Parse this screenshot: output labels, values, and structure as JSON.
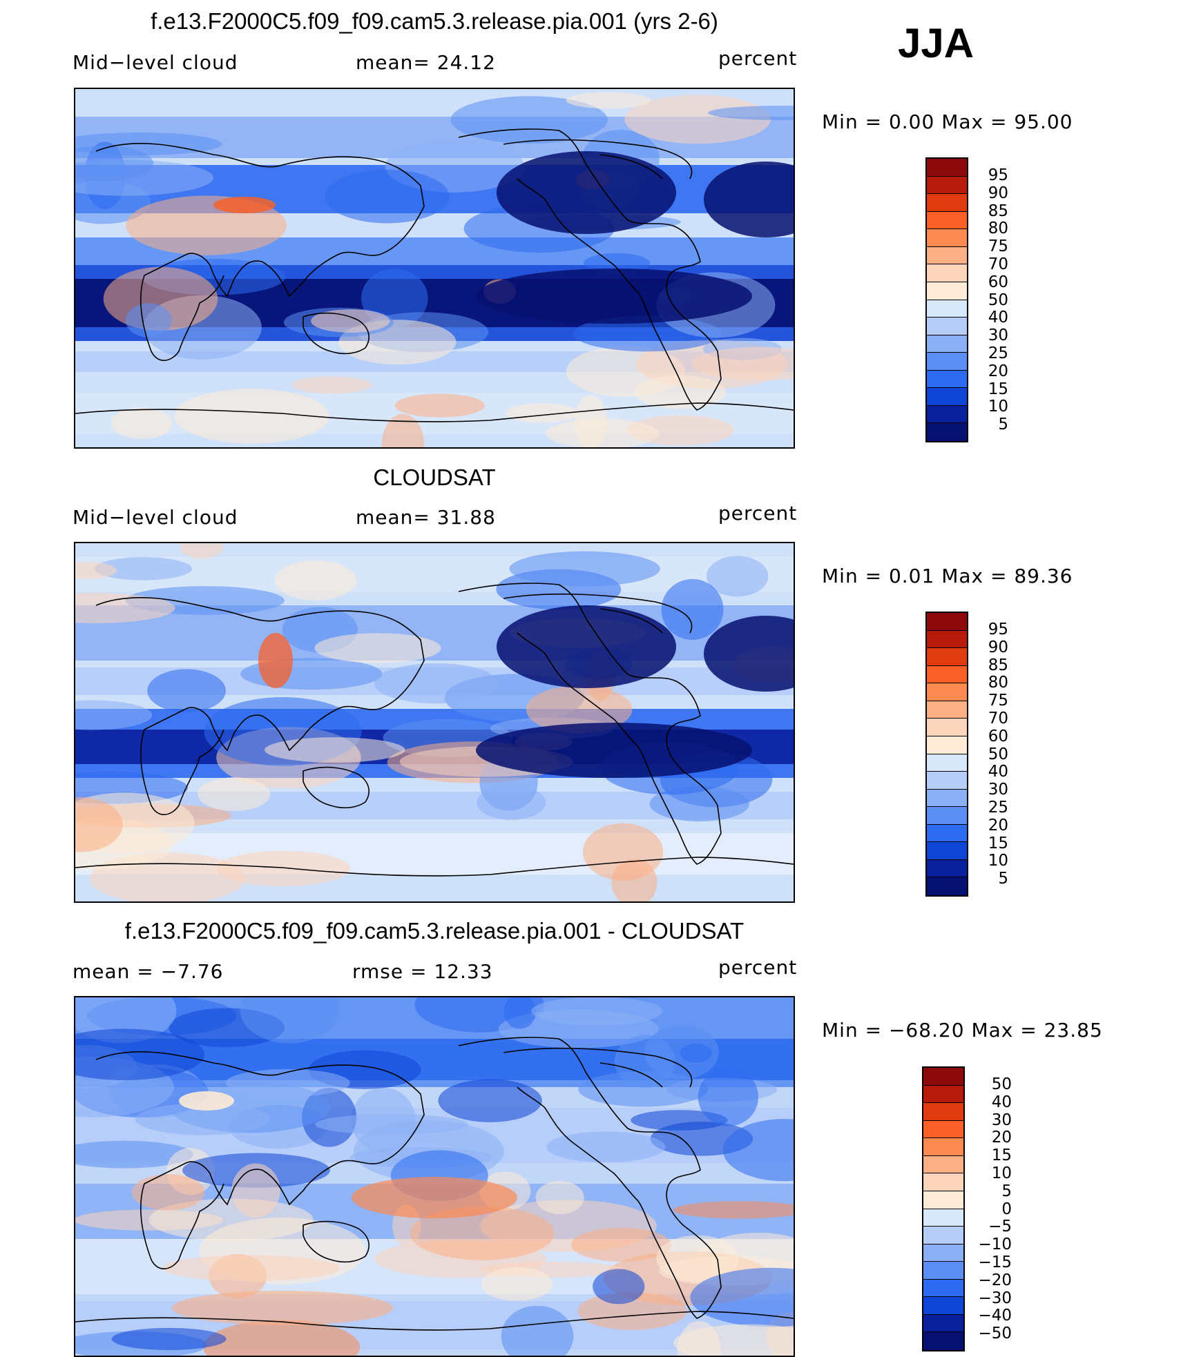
{
  "season": "JJA",
  "panels": [
    {
      "title": "f.e13.F2000C5.f09_f09.cam5.3.release.pia.001 (yrs 2-6)",
      "left_text": "Mid−level cloud",
      "center_text": "mean=   24.12",
      "right_text": "percent",
      "minmax": "Min  =     0.00  Max  =    95.00",
      "min": 0.0,
      "max": 95.0,
      "mean": 24.12,
      "colorbar": {
        "labels": [
          "95",
          "90",
          "85",
          "80",
          "75",
          "70",
          "60",
          "50",
          "40",
          "30",
          "25",
          "20",
          "15",
          "10",
          "5"
        ],
        "colors": [
          "#8c0a0a",
          "#b51a0a",
          "#e03a0f",
          "#f86028",
          "#fb8a52",
          "#fbaf85",
          "#fcd3bb",
          "#fdebd7",
          "#d8e7fa",
          "#b5cdf8",
          "#8cb0f5",
          "#5b8ff3",
          "#2d6cf0",
          "#0f45d6",
          "#0a1f9c",
          "#061070"
        ]
      }
    },
    {
      "title": "CLOUDSAT",
      "left_text": "Mid−level cloud",
      "center_text": "mean=   31.88",
      "right_text": "percent",
      "minmax": "Min  =     0.01  Max  =    89.36",
      "min": 0.01,
      "max": 89.36,
      "mean": 31.88,
      "colorbar": {
        "labels": [
          "95",
          "90",
          "85",
          "80",
          "75",
          "70",
          "60",
          "50",
          "40",
          "30",
          "25",
          "20",
          "15",
          "10",
          "5"
        ],
        "colors": [
          "#8c0a0a",
          "#b51a0a",
          "#e03a0f",
          "#f86028",
          "#fb8a52",
          "#fbaf85",
          "#fcd3bb",
          "#fdebd7",
          "#d8e7fa",
          "#b5cdf8",
          "#8cb0f5",
          "#5b8ff3",
          "#2d6cf0",
          "#0f45d6",
          "#0a1f9c",
          "#061070"
        ]
      }
    },
    {
      "title": "f.e13.F2000C5.f09_f09.cam5.3.release.pia.001 - CLOUDSAT",
      "left_text": "mean  =    −7.76",
      "center_text": "rmse  =    12.33",
      "right_text": "percent",
      "minmax": "Min  = −68.20  Max  =    23.85",
      "min": -68.2,
      "max": 23.85,
      "mean": -7.76,
      "rmse": 12.33,
      "colorbar": {
        "labels": [
          "50",
          "40",
          "30",
          "20",
          "15",
          "10",
          "5",
          "0",
          "−5",
          "−10",
          "−15",
          "−20",
          "−30",
          "−40",
          "−50"
        ],
        "colors": [
          "#8c0a0a",
          "#b51a0a",
          "#e03a0f",
          "#f86028",
          "#fb8a52",
          "#fbaf85",
          "#fcd3bb",
          "#fdebd7",
          "#d8e7fa",
          "#b5cdf8",
          "#8cb0f5",
          "#5b8ff3",
          "#2d6cf0",
          "#0f45d6",
          "#0a1f9c",
          "#061070"
        ]
      }
    }
  ]
}
